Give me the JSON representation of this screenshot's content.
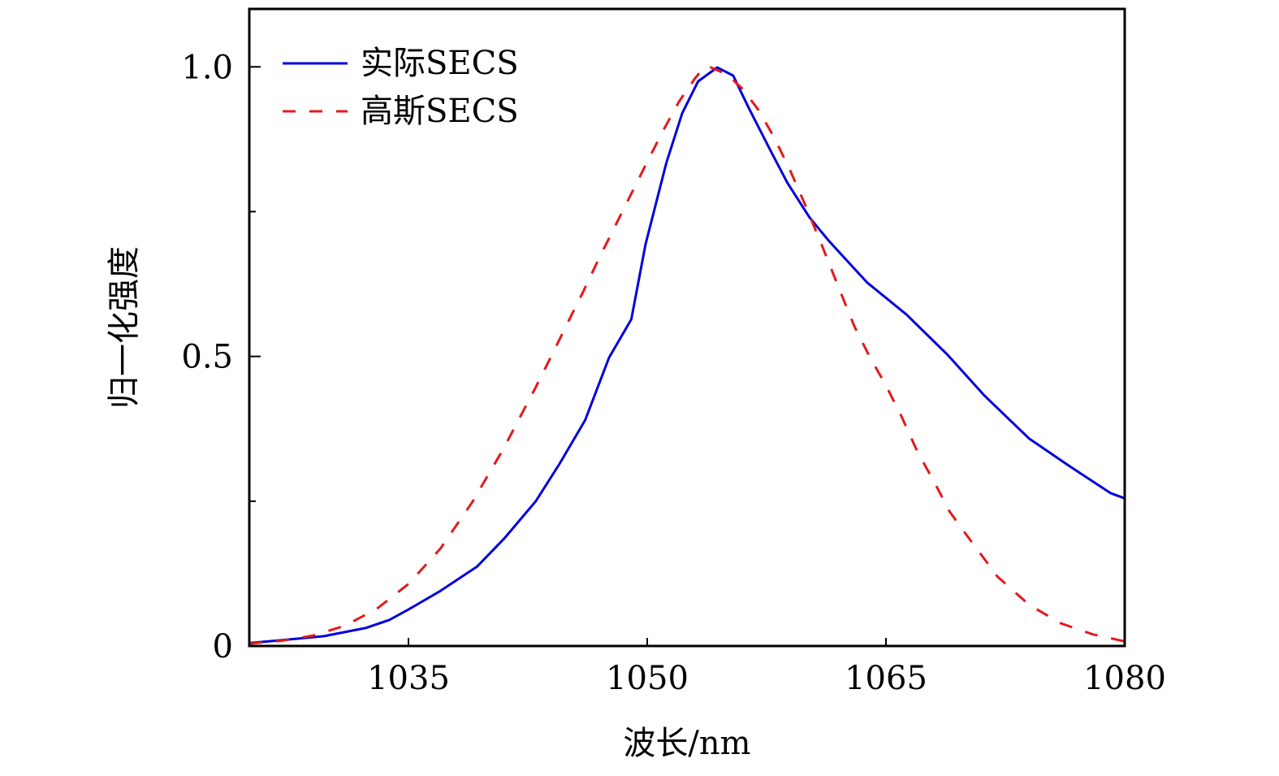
{
  "chart_data": {
    "type": "line",
    "title": "",
    "xlabel": "波长/nm",
    "ylabel": "归一化强度",
    "xlim": [
      1025,
      1080
    ],
    "ylim": [
      0,
      1.1
    ],
    "xticks": [
      1035,
      1050,
      1065,
      1080
    ],
    "xtick_labels": [
      "1035",
      "1050",
      "1065",
      "1080"
    ],
    "yticks": [
      0,
      0.5,
      1.0
    ],
    "ytick_labels": [
      "0",
      "0.5",
      "1.0"
    ],
    "yminor_ticks": [
      0.25,
      0.75
    ],
    "grid": false,
    "legend_position": "top-left",
    "series": [
      {
        "name": "实际SECS",
        "color": "#0000dd",
        "style": "solid",
        "x": [
          1025,
          1027,
          1029.7,
          1032.3,
          1033.8,
          1035,
          1037,
          1039.3,
          1041,
          1043,
          1044.5,
          1046.1,
          1047.6,
          1049,
          1049.9,
          1051.2,
          1052.2,
          1053.2,
          1054.4,
          1055.4,
          1056.4,
          1057.7,
          1058.8,
          1060.2,
          1061.4,
          1062.4,
          1063.8,
          1066.3,
          1068.9,
          1071.2,
          1074,
          1076.5,
          1079.1,
          1080
        ],
        "y": [
          0.005,
          0.01,
          0.017,
          0.031,
          0.045,
          0.063,
          0.095,
          0.137,
          0.185,
          0.25,
          0.315,
          0.39,
          0.498,
          0.564,
          0.694,
          0.834,
          0.92,
          0.975,
          0.999,
          0.985,
          0.928,
          0.858,
          0.8,
          0.74,
          0.7,
          0.67,
          0.628,
          0.572,
          0.502,
          0.432,
          0.358,
          0.311,
          0.264,
          0.255
        ]
      },
      {
        "name": "高斯SECS",
        "color": "#e31a1c",
        "style": "dashed",
        "x": [
          1025,
          1027,
          1029,
          1031,
          1033,
          1035,
          1037,
          1039,
          1041,
          1042,
          1043,
          1044,
          1045,
          1046,
          1047,
          1048,
          1049,
          1050,
          1051,
          1052,
          1053,
          1053.6,
          1054,
          1055,
          1056,
          1057,
          1058,
          1059,
          1060,
          1061,
          1062,
          1063,
          1064,
          1065,
          1066,
          1067,
          1068,
          1069,
          1070,
          1072,
          1074,
          1076,
          1078,
          1080
        ],
        "y": [
          0.004,
          0.009,
          0.018,
          0.035,
          0.064,
          0.107,
          0.168,
          0.248,
          0.342,
          0.395,
          0.447,
          0.502,
          0.558,
          0.613,
          0.671,
          0.726,
          0.781,
          0.836,
          0.89,
          0.94,
          0.98,
          1.0,
          0.999,
          0.987,
          0.962,
          0.925,
          0.877,
          0.82,
          0.757,
          0.69,
          0.621,
          0.553,
          0.498,
          0.45,
          0.395,
          0.334,
          0.285,
          0.232,
          0.194,
          0.12,
          0.071,
          0.039,
          0.02,
          0.008
        ]
      }
    ]
  }
}
